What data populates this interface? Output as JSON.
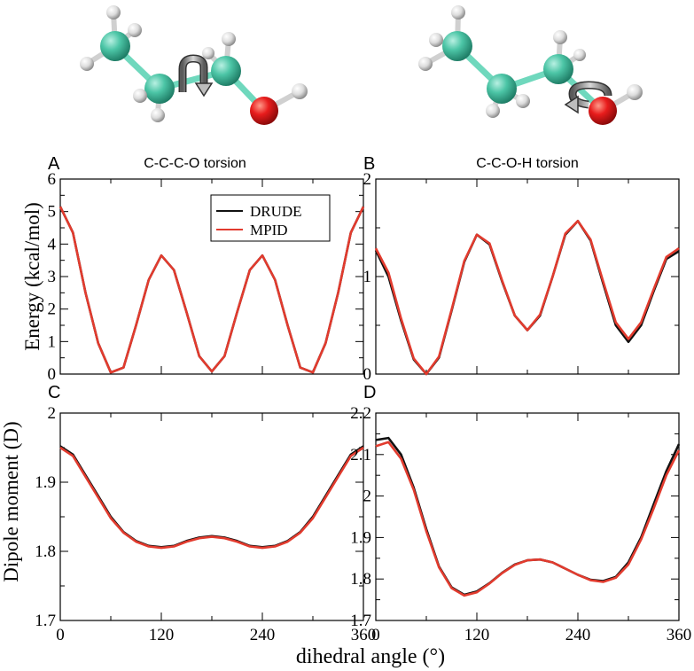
{
  "colors": {
    "drude": "#111111",
    "mpid": "#e23b2e",
    "carbon": "#4cc5a6",
    "oxygen": "#e81c1c",
    "hydrogen": "#e8e8e8",
    "bond": "#5fd0b4"
  },
  "figure": {
    "xlabel": "dihedral angle (°)",
    "ylabel_top": "Energy (kcal/mol)",
    "ylabel_bottom": "Dipole moment (D)"
  },
  "molecules": [
    {
      "name": "propanol-ccco",
      "icon": "rotation-arrow-icon"
    },
    {
      "name": "propanol-ccoh",
      "icon": "rotation-arrow-icon"
    }
  ],
  "chart_data": [
    {
      "panel": "A",
      "title": "C-C-C-O torsion",
      "type": "line",
      "xlim": [
        0,
        360
      ],
      "ylim": [
        0,
        6
      ],
      "xticks": [
        "0",
        "120",
        "240",
        "360"
      ],
      "yticks": [
        "0",
        "1",
        "2",
        "3",
        "4",
        "5",
        "6"
      ],
      "ytick_values": [
        0,
        1,
        2,
        3,
        4,
        5,
        6
      ],
      "legend": {
        "placement": "top-right",
        "entries": [
          "DRUDE",
          "MPID"
        ]
      },
      "series": [
        {
          "name": "DRUDE",
          "x": [
            0,
            15,
            30,
            45,
            60,
            75,
            90,
            105,
            120,
            135,
            150,
            165,
            180,
            195,
            210,
            225,
            240,
            255,
            270,
            285,
            300,
            315,
            330,
            345,
            360
          ],
          "y": [
            5.15,
            4.35,
            2.5,
            0.95,
            0.05,
            0.2,
            1.5,
            2.9,
            3.65,
            3.2,
            1.9,
            0.55,
            0.08,
            0.55,
            1.9,
            3.2,
            3.65,
            2.9,
            1.5,
            0.2,
            0.05,
            0.95,
            2.5,
            4.35,
            5.15
          ]
        },
        {
          "name": "MPID",
          "x": [
            0,
            15,
            30,
            45,
            60,
            75,
            90,
            105,
            120,
            135,
            150,
            165,
            180,
            195,
            210,
            225,
            240,
            255,
            270,
            285,
            300,
            315,
            330,
            345,
            360
          ],
          "y": [
            5.15,
            4.35,
            2.5,
            0.95,
            0.05,
            0.2,
            1.5,
            2.9,
            3.65,
            3.2,
            1.9,
            0.55,
            0.08,
            0.55,
            1.9,
            3.2,
            3.65,
            2.9,
            1.5,
            0.2,
            0.05,
            0.95,
            2.5,
            4.35,
            5.15
          ]
        }
      ]
    },
    {
      "panel": "B",
      "title": "C-C-O-H torsion",
      "type": "line",
      "xlim": [
        0,
        360
      ],
      "ylim": [
        0,
        2
      ],
      "xticks": [
        "0",
        "120",
        "240",
        "360"
      ],
      "yticks": [
        "0",
        "1",
        "2"
      ],
      "ytick_values": [
        0,
        1,
        2
      ],
      "series": [
        {
          "name": "DRUDE",
          "x": [
            0,
            15,
            30,
            45,
            60,
            75,
            90,
            105,
            120,
            135,
            150,
            165,
            180,
            195,
            210,
            225,
            240,
            255,
            270,
            285,
            300,
            315,
            330,
            345,
            360
          ],
          "y": [
            1.27,
            1.0,
            0.55,
            0.15,
            0.0,
            0.17,
            0.65,
            1.15,
            1.43,
            1.33,
            0.95,
            0.6,
            0.45,
            0.6,
            1.0,
            1.43,
            1.57,
            1.37,
            0.93,
            0.5,
            0.33,
            0.5,
            0.85,
            1.18,
            1.26
          ]
        },
        {
          "name": "MPID",
          "x": [
            0,
            15,
            30,
            45,
            60,
            75,
            90,
            105,
            120,
            135,
            150,
            165,
            180,
            195,
            210,
            225,
            240,
            255,
            270,
            285,
            300,
            315,
            330,
            345,
            360
          ],
          "y": [
            1.29,
            1.04,
            0.57,
            0.16,
            0.0,
            0.18,
            0.66,
            1.16,
            1.43,
            1.34,
            0.96,
            0.6,
            0.45,
            0.61,
            1.0,
            1.44,
            1.57,
            1.38,
            0.95,
            0.53,
            0.36,
            0.53,
            0.87,
            1.2,
            1.29
          ]
        }
      ]
    },
    {
      "panel": "C",
      "title": "",
      "type": "line",
      "xlim": [
        0,
        360
      ],
      "ylim": [
        1.7,
        2.0
      ],
      "xticks": [
        "0",
        "120",
        "240",
        "360"
      ],
      "yticks": [
        "1.7",
        "1.8",
        "1.9",
        "2"
      ],
      "ytick_values": [
        1.7,
        1.8,
        1.9,
        2.0
      ],
      "series": [
        {
          "name": "DRUDE",
          "x": [
            0,
            15,
            30,
            45,
            60,
            75,
            90,
            105,
            120,
            135,
            150,
            165,
            180,
            195,
            210,
            225,
            240,
            255,
            270,
            285,
            300,
            315,
            330,
            345,
            360
          ],
          "y": [
            1.952,
            1.94,
            1.91,
            1.88,
            1.85,
            1.828,
            1.815,
            1.808,
            1.806,
            1.808,
            1.815,
            1.82,
            1.822,
            1.82,
            1.815,
            1.808,
            1.806,
            1.808,
            1.815,
            1.828,
            1.85,
            1.88,
            1.91,
            1.94,
            1.952
          ]
        },
        {
          "name": "MPID",
          "x": [
            0,
            15,
            30,
            45,
            60,
            75,
            90,
            105,
            120,
            135,
            150,
            165,
            180,
            195,
            210,
            225,
            240,
            255,
            270,
            285,
            300,
            315,
            330,
            345,
            360
          ],
          "y": [
            1.95,
            1.938,
            1.908,
            1.878,
            1.848,
            1.827,
            1.814,
            1.807,
            1.805,
            1.807,
            1.814,
            1.819,
            1.821,
            1.819,
            1.814,
            1.807,
            1.805,
            1.807,
            1.814,
            1.827,
            1.848,
            1.878,
            1.908,
            1.938,
            1.95
          ]
        }
      ]
    },
    {
      "panel": "D",
      "title": "",
      "type": "line",
      "xlim": [
        0,
        360
      ],
      "ylim": [
        1.7,
        2.2
      ],
      "xticks": [
        "0",
        "120",
        "240",
        "360"
      ],
      "yticks": [
        "1.7",
        "1.8",
        "1.9",
        "2",
        "2.1",
        "2.2"
      ],
      "ytick_values": [
        1.7,
        1.8,
        1.9,
        2.0,
        2.1,
        2.2
      ],
      "series": [
        {
          "name": "DRUDE",
          "x": [
            0,
            15,
            30,
            45,
            60,
            75,
            90,
            105,
            120,
            135,
            150,
            165,
            180,
            195,
            210,
            225,
            240,
            255,
            270,
            285,
            300,
            315,
            330,
            345,
            360
          ],
          "y": [
            2.135,
            2.14,
            2.1,
            2.02,
            1.92,
            1.83,
            1.78,
            1.762,
            1.77,
            1.79,
            1.815,
            1.835,
            1.845,
            1.847,
            1.84,
            1.825,
            1.81,
            1.798,
            1.795,
            1.805,
            1.84,
            1.9,
            1.98,
            2.06,
            2.125
          ]
        },
        {
          "name": "MPID",
          "x": [
            0,
            15,
            30,
            45,
            60,
            75,
            90,
            105,
            120,
            135,
            150,
            165,
            180,
            195,
            210,
            225,
            240,
            255,
            270,
            285,
            300,
            315,
            330,
            345,
            360
          ],
          "y": [
            2.12,
            2.13,
            2.09,
            2.015,
            1.915,
            1.828,
            1.778,
            1.76,
            1.768,
            1.789,
            1.814,
            1.834,
            1.845,
            1.847,
            1.84,
            1.825,
            1.81,
            1.797,
            1.793,
            1.803,
            1.835,
            1.895,
            1.97,
            2.05,
            2.11
          ]
        }
      ]
    }
  ]
}
